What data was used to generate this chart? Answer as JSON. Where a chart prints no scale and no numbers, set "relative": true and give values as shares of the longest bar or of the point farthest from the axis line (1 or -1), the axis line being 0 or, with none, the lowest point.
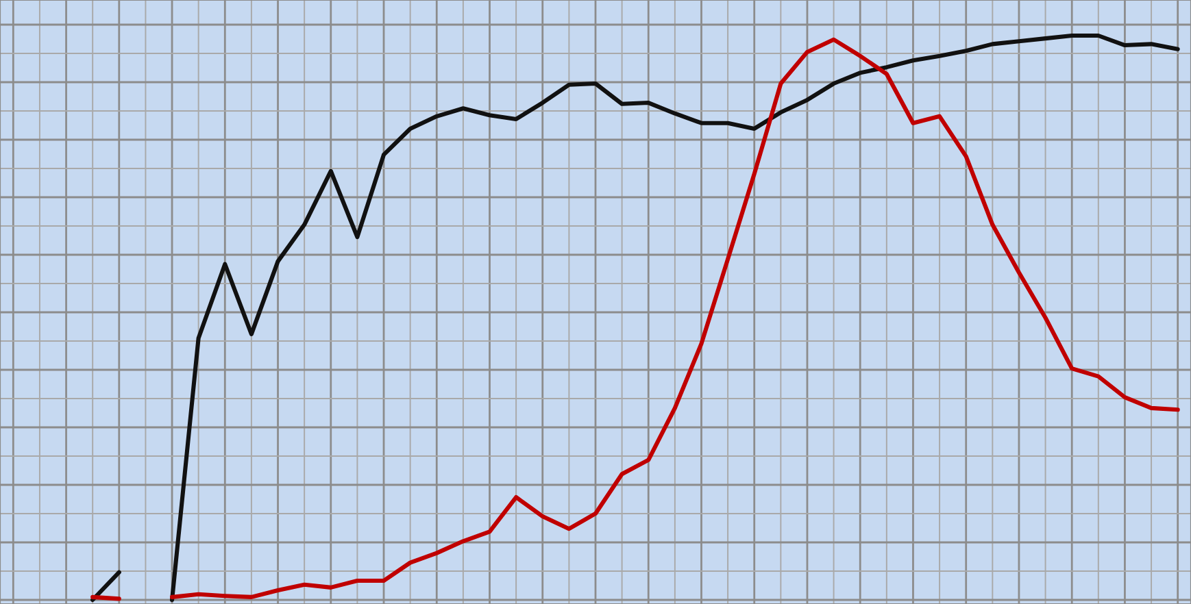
{
  "chart_data": {
    "type": "line",
    "relative": true,
    "grid": true,
    "marker": "none",
    "line_style": "solid",
    "categories": [
      null,
      null,
      null,
      null,
      null,
      null,
      null,
      null,
      null,
      null,
      null,
      null,
      null,
      null,
      null,
      null,
      null,
      null,
      null,
      null,
      null,
      null,
      null,
      null,
      null,
      null,
      null,
      null,
      null,
      null,
      null,
      null,
      null,
      null,
      null,
      null,
      null,
      null,
      null,
      null,
      null,
      null,
      null,
      null,
      null
    ],
    "series": [
      {
        "color": "#111111",
        "values": [
          null,
          null,
          null,
          null,
          null,
          null,
          0,
          0.464,
          0.595,
          0.471,
          0.6,
          0.665,
          0.76,
          0.643,
          0.789,
          0.835,
          0.857,
          0.871,
          0.859,
          0.852,
          0.881,
          0.913,
          0.915,
          0.879,
          0.881,
          0.862,
          0.845,
          0.845,
          0.835,
          0.864,
          0.886,
          0.915,
          0.934,
          0.944,
          0.956,
          0.964,
          0.973,
          0.985,
          0.99,
          0.995,
          1,
          1,
          0.983,
          0.985,
          0.976
        ]
      },
      {
        "color": "#c00000",
        "values": [
          null,
          null,
          null,
          null,
          null,
          null,
          0.005,
          0.01,
          0.007,
          0.005,
          0.017,
          0.027,
          0.022,
          0.034,
          0.034,
          0.066,
          0.083,
          0.104,
          0.121,
          0.182,
          0.148,
          0.126,
          0.153,
          0.223,
          0.248,
          0.34,
          0.454,
          0.604,
          0.755,
          0.915,
          0.971,
          0.993,
          0.964,
          0.932,
          0.845,
          0.857,
          0.786,
          0.665,
          0.58,
          0.5,
          0.41,
          0.396,
          0.359,
          0.34,
          0.337
        ]
      },
      {
        "color": "#111111",
        "values": [
          null,
          null,
          null,
          0,
          0.049,
          null,
          null,
          null,
          null,
          null,
          null,
          null,
          null,
          null,
          null,
          null,
          null,
          null,
          null,
          null,
          null,
          null,
          null,
          null,
          null,
          null,
          null,
          null,
          null,
          null,
          null,
          null,
          null,
          null,
          null,
          null,
          null,
          null,
          null,
          null,
          null,
          null,
          null,
          null,
          null
        ]
      },
      {
        "color": "#c00000",
        "values": [
          null,
          null,
          null,
          0.005,
          0.002,
          null,
          null,
          null,
          null,
          null,
          null,
          null,
          null,
          null,
          null,
          null,
          null,
          null,
          null,
          null,
          null,
          null,
          null,
          null,
          null,
          null,
          null,
          null,
          null,
          null,
          null,
          null,
          null,
          null,
          null,
          null,
          null,
          null,
          null,
          null,
          null,
          null,
          null,
          null,
          null
        ]
      }
    ]
  }
}
